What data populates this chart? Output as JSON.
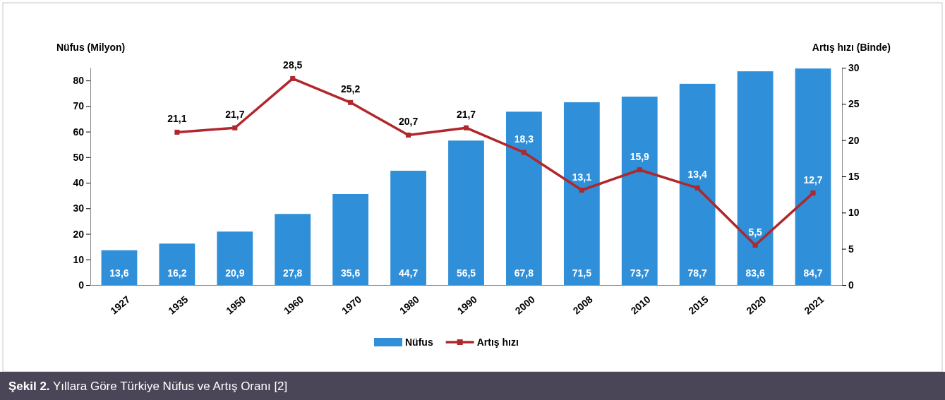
{
  "chart_data": {
    "type": "bar",
    "categories": [
      "1927",
      "1935",
      "1950",
      "1960",
      "1970",
      "1980",
      "1990",
      "2000",
      "2008",
      "2010",
      "2015",
      "2020",
      "2021"
    ],
    "series": [
      {
        "name": "Nüfus",
        "color": "#2f8fd8",
        "values": [
          13.6,
          16.2,
          20.9,
          27.8,
          35.6,
          44.7,
          56.5,
          67.8,
          71.5,
          73.7,
          78.7,
          83.6,
          84.7
        ],
        "value_labels": [
          "13,6",
          "16,2",
          "20,9",
          "27,8",
          "35,6",
          "44,7",
          "56,5",
          "67,8",
          "71,5",
          "73,7",
          "78,7",
          "83,6",
          "84,7"
        ]
      },
      {
        "name": "Artış hızı",
        "type": "line",
        "axis": "y2",
        "color": "#b0272c",
        "values": [
          null,
          21.1,
          21.7,
          28.5,
          25.2,
          20.7,
          21.7,
          18.3,
          13.1,
          15.9,
          13.4,
          5.5,
          12.7
        ],
        "value_labels": [
          null,
          "21,1",
          "21,7",
          "28,5",
          "25,2",
          "20,7",
          "21,7",
          "18,3",
          "13,1",
          "15,9",
          "13,4",
          "5,5",
          "12,7"
        ]
      }
    ],
    "ylim": [
      0,
      85
    ],
    "yticks": [
      0,
      10,
      20,
      30,
      40,
      50,
      60,
      70,
      80
    ],
    "y2lim": [
      0,
      30
    ],
    "y2ticks": [
      0,
      5,
      10,
      15,
      20,
      25,
      30
    ],
    "ylabel": "Nüfus (Milyon)",
    "y2label": "Artış hızı (Binde)",
    "marker": "square",
    "line_style": "solid",
    "legend": "bottom",
    "grid": false,
    "annotations": [
      "Şekil 2. Yıllara Göre Türkiye Nüfus ve Artış Oranı [2]"
    ]
  }
}
